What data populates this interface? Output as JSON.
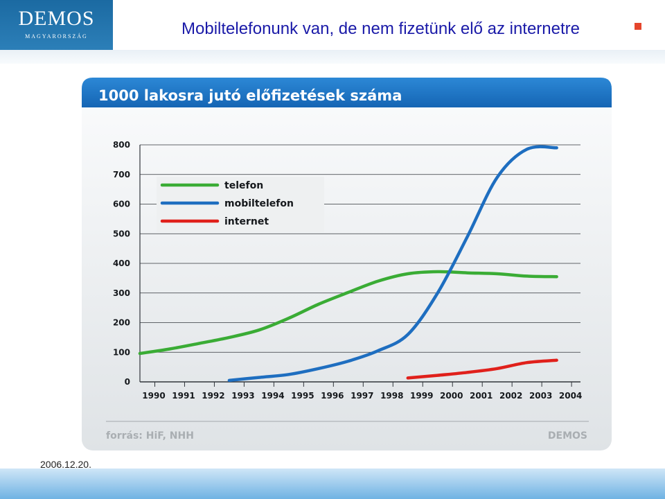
{
  "header": {
    "logo_main": "DEMOS",
    "logo_sub": "MAGYARORSZÁG",
    "title": "Mobiltelefonunk van, de nem fizetünk elő az internetre"
  },
  "footer": {
    "date": "2006.12.20."
  },
  "colors": {
    "accent_blue": "#1f6fb5",
    "telefon": "#3aac35",
    "mobiltelefon": "#1e6ec0",
    "internet": "#e0201b",
    "bullet": "#e5452c"
  },
  "chart_data": {
    "type": "line",
    "title": "1000 lakosra jutó előfizetések száma",
    "source": "forrás: HiF, NHH",
    "brand": "DEMOS",
    "x_ticks": [
      "1990",
      "1991",
      "1992",
      "1993",
      "1994",
      "1995",
      "1996",
      "1997",
      "1998",
      "1999",
      "2000",
      "2001",
      "2002",
      "2003",
      "2004"
    ],
    "y_ticks": [
      "0",
      "100",
      "200",
      "300",
      "400",
      "500",
      "600",
      "700",
      "800"
    ],
    "xlim": [
      1990,
      2004.8
    ],
    "ylim": [
      0,
      800
    ],
    "grid": true,
    "legend_position": "top-left",
    "series": [
      {
        "name": "telefon",
        "color": "#3aac35",
        "points": [
          [
            1990,
            96
          ],
          [
            1991,
            111
          ],
          [
            1992,
            130
          ],
          [
            1993,
            150
          ],
          [
            1994,
            175
          ],
          [
            1995,
            215
          ],
          [
            1996,
            262
          ],
          [
            1997,
            302
          ],
          [
            1998,
            340
          ],
          [
            1999,
            365
          ],
          [
            2000,
            372
          ],
          [
            2001,
            368
          ],
          [
            2002,
            365
          ],
          [
            2003,
            357
          ],
          [
            2004,
            355
          ]
        ]
      },
      {
        "name": "mobiltelefon",
        "color": "#1e6ec0",
        "points": [
          [
            1993,
            5
          ],
          [
            1994,
            15
          ],
          [
            1995,
            25
          ],
          [
            1996,
            45
          ],
          [
            1997,
            70
          ],
          [
            1998,
            105
          ],
          [
            1999,
            160
          ],
          [
            2000,
            300
          ],
          [
            2001,
            490
          ],
          [
            2002,
            690
          ],
          [
            2003,
            785
          ],
          [
            2004,
            790
          ]
        ]
      },
      {
        "name": "internet",
        "color": "#e0201b",
        "points": [
          [
            1999,
            13
          ],
          [
            2000,
            22
          ],
          [
            2001,
            32
          ],
          [
            2002,
            45
          ],
          [
            2003,
            65
          ],
          [
            2004,
            73
          ]
        ]
      }
    ]
  }
}
